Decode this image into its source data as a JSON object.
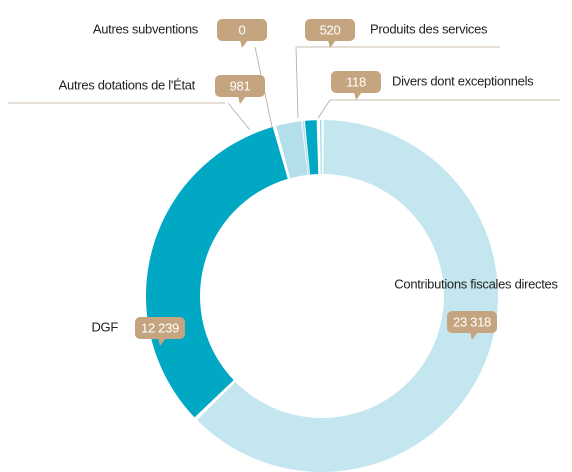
{
  "chart_data": {
    "type": "donut",
    "categories": [
      "Contributions fiscales directes",
      "DGF",
      "Autres dotations de l'État",
      "Autres subventions",
      "Produits des services",
      "Divers dont exceptionnels"
    ],
    "values": [
      23318,
      12239,
      981,
      0,
      520,
      118
    ],
    "value_labels": [
      "23 318",
      "12 239",
      "981",
      "0",
      "520",
      "118"
    ],
    "colors": [
      "#c4e6ef",
      "#00a8c4",
      "#b3dfea",
      "#b3dfea",
      "#00a8c4",
      "#5ccad9"
    ]
  }
}
